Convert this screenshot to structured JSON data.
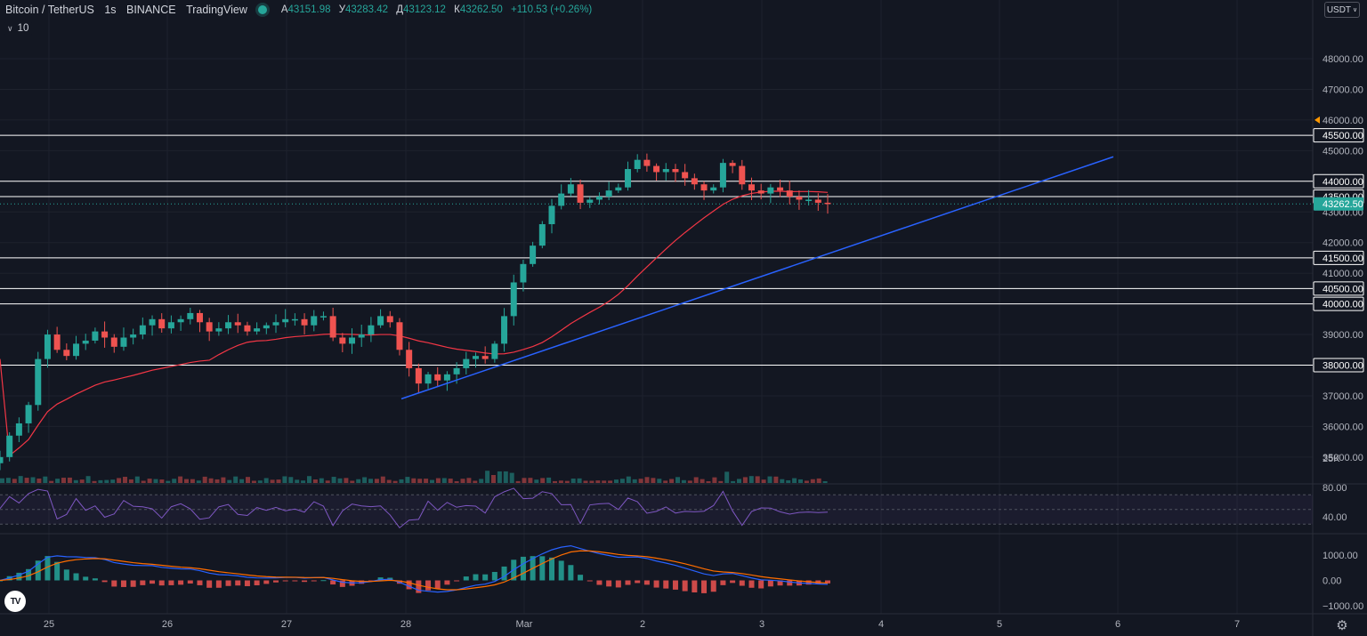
{
  "header": {
    "symbol": "Bitcoin / TetherUS",
    "interval": "1s",
    "exchange": "BINANCE",
    "source": "TradingView",
    "ohlc": [
      {
        "key": "А",
        "value": "43151.98"
      },
      {
        "key": "У",
        "value": "43283.42"
      },
      {
        "key": "Д",
        "value": "43123.12"
      },
      {
        "key": "К",
        "value": "43262.50"
      }
    ],
    "change": "+110.53 (+0.26%)",
    "indicator_value": "10",
    "currency": "USDT"
  },
  "price_axis": {
    "ticks": [
      "48000.00",
      "47000.00",
      "46000.00",
      "45000.00",
      "43000.00",
      "42000.00",
      "41000.00",
      "39000.00",
      "37000.00",
      "36000.00",
      "35000.00"
    ],
    "level_labels": [
      "45500.00",
      "44000.00",
      "43500.00",
      "41500.00",
      "40500.00",
      "40000.00",
      "38000.00"
    ],
    "last_price": "43262.50",
    "volume_label": "25K",
    "rsi_ticks": [
      "80.00",
      "40.00"
    ],
    "macd_ticks": [
      "1000.00",
      "0.00",
      "−1000.00"
    ]
  },
  "time_axis": {
    "labels": [
      "25",
      "26",
      "27",
      "28",
      "Mar",
      "2",
      "3",
      "4",
      "5",
      "6",
      "7"
    ]
  },
  "colors": {
    "background": "#131722",
    "up": "#26a69a",
    "down": "#ef5350",
    "trendline": "#2962ff",
    "ma": "#f23645",
    "rsi": "#7e57c2",
    "macd": "#2962ff",
    "signal": "#ff6d00",
    "level": "#ffffff"
  },
  "icons": {
    "logo": "tradingview-logo-icon",
    "settings": "gear-icon",
    "status": "market-open-dot-icon"
  },
  "chart_data": {
    "type": "candlestick",
    "x_labels": [
      "25",
      "26",
      "27",
      "28",
      "Mar",
      "2",
      "3",
      "4",
      "5",
      "6",
      "7"
    ],
    "ylim": [
      34500,
      48500
    ],
    "horizontal_levels": [
      45500,
      44000,
      43500,
      41500,
      40500,
      40000,
      38000
    ],
    "last_price": 43262.5,
    "trendline": {
      "from": {
        "x": "27.95",
        "y": 36900
      },
      "to": {
        "x": "5.95",
        "y": 44800
      }
    },
    "price_path": [
      35000,
      35700,
      36100,
      36700,
      38200,
      39000,
      38500,
      38300,
      38700,
      38800,
      39100,
      38900,
      38600,
      38900,
      39000,
      39300,
      39500,
      39200,
      39400,
      39500,
      39700,
      39400,
      39100,
      39200,
      39400,
      39300,
      39100,
      39200,
      39300,
      39400,
      39500,
      39500,
      39300,
      39600,
      39600,
      38900,
      38700,
      38900,
      39000,
      39300,
      39600,
      39400,
      38500,
      37900,
      37400,
      37700,
      37500,
      37700,
      37900,
      38200,
      38300,
      38200,
      38700,
      39600,
      40700,
      41300,
      41900,
      42600,
      43200,
      43600,
      43900,
      43300,
      43400,
      43500,
      43700,
      43800,
      44400,
      44700,
      44500,
      44300,
      44400,
      44300,
      44100,
      43900,
      43700,
      43800,
      44600,
      44500,
      43900,
      43700,
      43600,
      43800,
      43700,
      43500,
      43400,
      43400,
      43300,
      43262
    ],
    "volume_scale_label": "25K",
    "rsi_range": [
      20,
      90
    ],
    "macd_range": [
      -1500,
      1500
    ]
  }
}
